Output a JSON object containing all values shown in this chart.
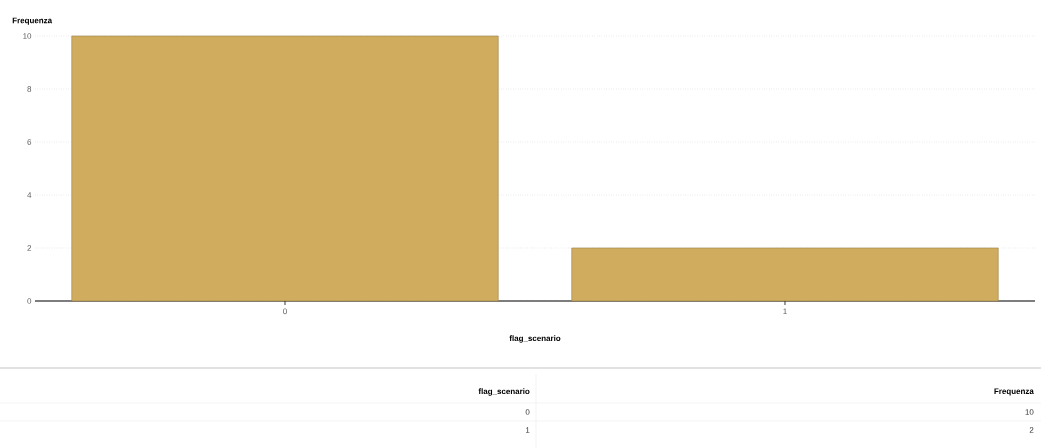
{
  "chart_data": {
    "type": "bar",
    "xlabel": "flag_scenario",
    "ylabel": "Frequenza",
    "categories": [
      "0",
      "1"
    ],
    "values": [
      10,
      2
    ],
    "color": "#d0ac5e",
    "ylim": [
      0,
      10
    ],
    "yticks": [
      0,
      2,
      4,
      6,
      8,
      10
    ],
    "grid": "y",
    "annotations": [
      "10",
      "2"
    ]
  }
}
